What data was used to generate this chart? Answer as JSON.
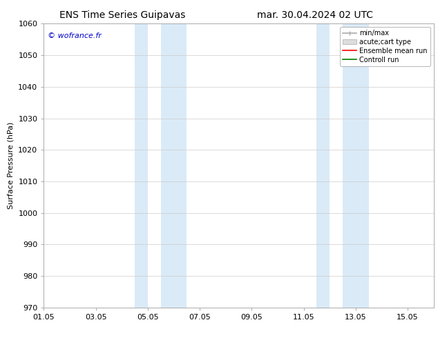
{
  "title_left": "ENS Time Series Guipavas",
  "title_right": "mar. 30.04.2024 02 UTC",
  "ylabel": "Surface Pressure (hPa)",
  "ylim": [
    970,
    1060
  ],
  "yticks": [
    970,
    980,
    990,
    1000,
    1010,
    1020,
    1030,
    1040,
    1050,
    1060
  ],
  "xlim": [
    0,
    15
  ],
  "xtick_labels": [
    "01.05",
    "03.05",
    "05.05",
    "07.05",
    "09.05",
    "11.05",
    "13.05",
    "15.05"
  ],
  "xtick_positions": [
    0,
    2,
    4,
    6,
    8,
    10,
    12,
    14
  ],
  "shaded_regions": [
    {
      "start": 3.5,
      "end": 4.0
    },
    {
      "start": 4.5,
      "end": 5.5
    },
    {
      "start": 10.5,
      "end": 11.0
    },
    {
      "start": 11.5,
      "end": 12.5
    }
  ],
  "shaded_color": "#daeaf7",
  "watermark_text": "© wofrance.fr",
  "watermark_color": "#0000cc",
  "legend_labels": [
    "min/max",
    "acute;cart type",
    "Ensemble mean run",
    "Controll run"
  ],
  "legend_colors": [
    "#aaaaaa",
    "#cccccc",
    "red",
    "green"
  ],
  "bg_color": "#ffffff",
  "grid_color": "#cccccc",
  "title_fontsize": 10,
  "label_fontsize": 8,
  "tick_fontsize": 8,
  "legend_fontsize": 7
}
